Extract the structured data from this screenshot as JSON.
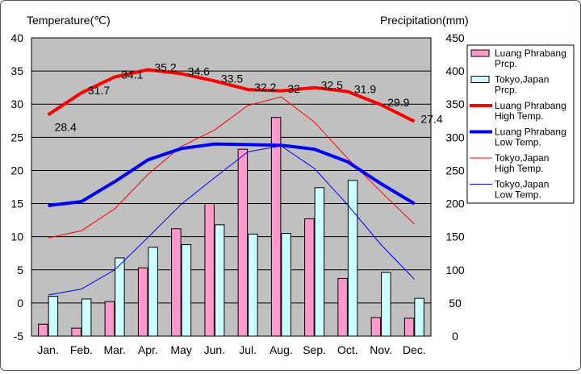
{
  "chart_data": {
    "type": "bar+line",
    "y_left_label": "Temperature(℃)",
    "y_right_label": "Precipitation(mm)",
    "y_left_range": [
      -5,
      40
    ],
    "y_left_ticks": [
      -5,
      0,
      5,
      10,
      15,
      20,
      25,
      30,
      35,
      40
    ],
    "y_right_range": [
      0,
      450
    ],
    "y_right_ticks": [
      0,
      50,
      100,
      150,
      200,
      250,
      300,
      350,
      400,
      450
    ],
    "categories": [
      "Jan.",
      "Feb.",
      "Mar.",
      "Apr.",
      "May",
      "Jun.",
      "Jul.",
      "Aug.",
      "Sep.",
      "Oct.",
      "Nov.",
      "Dec."
    ],
    "grid": "horizontal",
    "legend_position": "right",
    "bar_series": [
      {
        "name": "Luang Phrabang Prcp.",
        "color": "#ff99cc",
        "axis": "right",
        "values": [
          18,
          12,
          52,
          103,
          162,
          200,
          282,
          330,
          177,
          87,
          28,
          27
        ]
      },
      {
        "name": "Tokyo,Japan Prcp.",
        "color": "#ccffff",
        "axis": "right",
        "values": [
          60,
          56,
          118,
          134,
          138,
          168,
          154,
          155,
          224,
          235,
          96,
          57
        ]
      }
    ],
    "line_series": [
      {
        "name": "Luang Phrabang High Temp.",
        "color": "#ff0000",
        "width": 4,
        "axis": "left",
        "values": [
          28.4,
          31.7,
          34.1,
          35.2,
          34.6,
          33.5,
          32.2,
          32,
          32.5,
          31.9,
          29.9,
          27.4
        ],
        "labels": [
          "28.4",
          "31.7",
          "34.1",
          "35.2",
          "34.6",
          "33.5",
          "32.2",
          "32",
          "32.5",
          "31.9",
          "29.9",
          "27.4"
        ]
      },
      {
        "name": "Luang Phrabang Low Temp.",
        "color": "#0000ff",
        "width": 4,
        "axis": "left",
        "values": [
          14.7,
          15.3,
          18.3,
          21.6,
          23.3,
          24,
          23.9,
          23.8,
          23.2,
          21.3,
          18,
          15
        ]
      },
      {
        "name": "Tokyo,Japan High Temp.",
        "color": "#ff0000",
        "width": 1,
        "axis": "left",
        "values": [
          9.8,
          10.9,
          14.2,
          19.4,
          23.6,
          26.1,
          29.8,
          31.1,
          27.3,
          21.8,
          16.8,
          11.9
        ]
      },
      {
        "name": "Tokyo,Japan Low Temp.",
        "color": "#0000ff",
        "width": 1,
        "axis": "left",
        "values": [
          1.2,
          2.1,
          5,
          9.9,
          14.9,
          18.9,
          22.8,
          23.7,
          20.3,
          14.8,
          8.8,
          3.6
        ]
      }
    ],
    "legend": [
      {
        "series": "Luang Phrabang Prcp.",
        "lines": [
          "Luang Phrabang",
          "Prcp."
        ],
        "kind": "bar",
        "color": "#ff99cc"
      },
      {
        "series": "Tokyo,Japan Prcp.",
        "lines": [
          "Tokyo,Japan",
          "Prcp."
        ],
        "kind": "bar",
        "color": "#ccffff"
      },
      {
        "series": "Luang Phrabang High Temp.",
        "lines": [
          "Luang Phrabang",
          "High Temp."
        ],
        "kind": "line",
        "color": "#ff0000",
        "width": 4
      },
      {
        "series": "Luang Phrabang Low Temp.",
        "lines": [
          "Luang Phrabang",
          "Low Temp."
        ],
        "kind": "line",
        "color": "#0000ff",
        "width": 4
      },
      {
        "series": "Tokyo,Japan High Temp.",
        "lines": [
          "Tokyo,Japan",
          "High Temp."
        ],
        "kind": "line",
        "color": "#ff0000",
        "width": 1
      },
      {
        "series": "Tokyo,Japan Low Temp.",
        "lines": [
          "Tokyo,Japan",
          "Low Temp."
        ],
        "kind": "line",
        "color": "#0000ff",
        "width": 1
      }
    ]
  }
}
